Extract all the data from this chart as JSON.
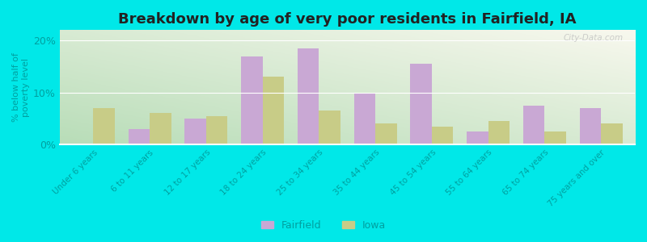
{
  "title": "Breakdown by age of very poor residents in Fairfield, IA",
  "categories": [
    "Under 6 years",
    "6 to 11 years",
    "12 to 17 years",
    "18 to 24 years",
    "25 to 34 years",
    "35 to 44 years",
    "45 to 54 years",
    "55 to 64 years",
    "65 to 74 years",
    "75 years and over"
  ],
  "fairfield_values": [
    0.0,
    3.0,
    5.0,
    17.0,
    18.5,
    10.0,
    15.5,
    2.5,
    7.5,
    7.0
  ],
  "iowa_values": [
    7.0,
    6.0,
    5.5,
    13.0,
    6.5,
    4.0,
    3.5,
    4.5,
    2.5,
    4.0
  ],
  "fairfield_color": "#c9a8d4",
  "iowa_color": "#c8cc87",
  "background_outer": "#00e8e8",
  "background_plot_bottom_left": "#a8d8a8",
  "background_plot_top_right": "#f5f5e8",
  "title_fontsize": 13,
  "ylabel": "% below half of\npoverty level",
  "ylim": [
    0,
    22
  ],
  "yticks": [
    0,
    10,
    20
  ],
  "ytick_labels": [
    "0%",
    "10%",
    "20%"
  ],
  "bar_width": 0.38,
  "legend_labels": [
    "Fairfield",
    "Iowa"
  ],
  "tick_color": "#00a0a0",
  "tick_fontsize": 8
}
